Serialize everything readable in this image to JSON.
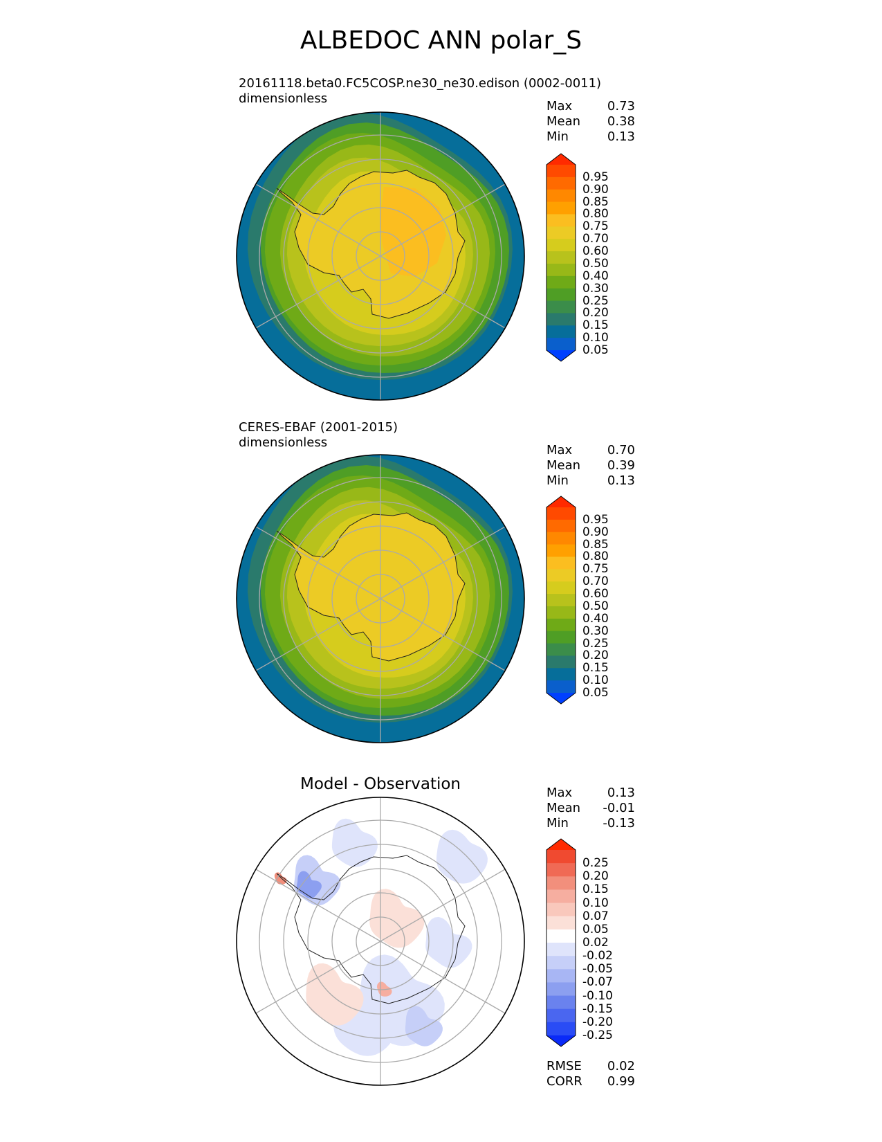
{
  "title": "ALBEDOC ANN polar_S",
  "panels": [
    {
      "subtitle": "20161118.beta0.FC5COSP.ne30_ne30.edison (0002-0011)",
      "units": "dimensionless",
      "stats": [
        {
          "label": "Max",
          "value": "0.73"
        },
        {
          "label": "Mean",
          "value": "0.38"
        },
        {
          "label": "Min",
          "value": "0.13"
        }
      ]
    },
    {
      "subtitle": "CERES-EBAF (2001-2015)",
      "units": "dimensionless",
      "stats": [
        {
          "label": "Max",
          "value": "0.70"
        },
        {
          "label": "Mean",
          "value": "0.39"
        },
        {
          "label": "Min",
          "value": "0.13"
        }
      ]
    },
    {
      "subtitle": "Model - Observation",
      "stats": [
        {
          "label": "Max",
          "value": "0.13"
        },
        {
          "label": "Mean",
          "value": "-0.01"
        },
        {
          "label": "Min",
          "value": "-0.13"
        }
      ],
      "metrics": [
        {
          "label": "RMSE",
          "value": "0.02"
        },
        {
          "label": "CORR",
          "value": "0.99"
        }
      ]
    }
  ],
  "colorbars": {
    "levels": [
      "0.95",
      "0.90",
      "0.85",
      "0.80",
      "0.75",
      "0.70",
      "0.60",
      "0.50",
      "0.40",
      "0.30",
      "0.25",
      "0.20",
      "0.15",
      "0.10",
      "0.05"
    ],
    "colors": [
      "#ff2a00",
      "#ff4a00",
      "#ff6a00",
      "#ff8800",
      "#ffa000",
      "#fbbe20",
      "#eccb25",
      "#d6cc1d",
      "#b8c21c",
      "#98b818",
      "#6faa17",
      "#4f9e25",
      "#3b8d4a",
      "#2a7a6c",
      "#066e9a",
      "#0a5fcc",
      "#0040ff"
    ],
    "diff_levels": [
      "0.25",
      "0.20",
      "0.15",
      "0.10",
      "0.07",
      "0.05",
      "0.02",
      "-0.02",
      "-0.05",
      "-0.07",
      "-0.10",
      "-0.15",
      "-0.20",
      "-0.25"
    ],
    "diff_colors": [
      "#ff2a00",
      "#f04a30",
      "#f06a55",
      "#f28f7c",
      "#f6aea0",
      "#f9c8bc",
      "#fbe0d8",
      "#ffffff",
      "#dfe4fb",
      "#c6cff8",
      "#a8b6f4",
      "#8c9ff0",
      "#6a82ee",
      "#4a66f0",
      "#2a4cf5",
      "#0a2af8"
    ]
  }
}
